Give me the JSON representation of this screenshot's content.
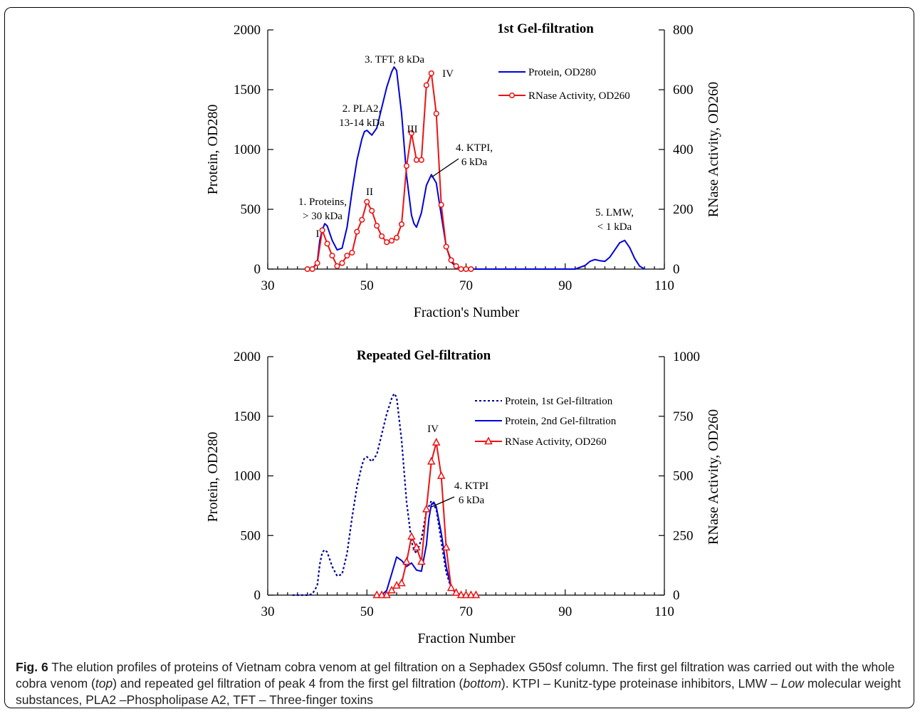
{
  "chart_data": [
    {
      "type": "line",
      "title": "1st Gel-filtration",
      "xlabel": "Fraction's Number",
      "ylabel_left": "Protein, OD280",
      "ylabel_right": "RNase Activity, OD260",
      "xlim": [
        30,
        110
      ],
      "ylim_left": [
        0,
        2000
      ],
      "ylim_right": [
        0,
        800
      ],
      "x_ticks": [
        30,
        50,
        70,
        90,
        110
      ],
      "y_ticks_left": [
        0,
        500,
        1000,
        1500,
        2000
      ],
      "y_ticks_right": [
        0,
        200,
        400,
        600,
        800
      ],
      "grid": false,
      "legend_position": "top-right",
      "series": [
        {
          "name": "Protein, OD280",
          "axis": "left",
          "color": "#0000dd",
          "style": "solid",
          "marker": "none",
          "x": [
            39,
            40,
            40.5,
            41,
            41.5,
            42,
            43,
            44,
            45,
            46,
            47,
            48,
            49,
            49.5,
            50,
            50.5,
            51,
            52,
            53,
            54,
            55,
            55.5,
            56,
            57,
            58,
            59,
            59.5,
            60,
            61,
            62,
            63,
            64,
            65,
            66,
            67,
            68,
            69,
            70,
            72,
            80,
            88,
            92,
            94,
            95,
            96,
            97,
            98,
            99,
            100,
            101,
            102,
            103,
            104,
            105,
            106
          ],
          "y": [
            0,
            60,
            240,
            330,
            380,
            360,
            240,
            160,
            175,
            350,
            650,
            910,
            1090,
            1150,
            1160,
            1140,
            1120,
            1180,
            1350,
            1520,
            1650,
            1690,
            1660,
            1300,
            780,
            450,
            380,
            350,
            470,
            700,
            790,
            720,
            450,
            190,
            60,
            20,
            5,
            0,
            0,
            0,
            0,
            0,
            30,
            65,
            80,
            70,
            65,
            100,
            160,
            220,
            240,
            180,
            90,
            25,
            0
          ]
        },
        {
          "name": "RNase Activity, OD260",
          "axis": "right",
          "color": "#ee1111",
          "style": "solid",
          "marker": "circle",
          "x": [
            38,
            39,
            40,
            41,
            42,
            43,
            44,
            45,
            46,
            47,
            48,
            49,
            50,
            51,
            52,
            53,
            54,
            55,
            56,
            57,
            58,
            59,
            60,
            61,
            62,
            63,
            64,
            65,
            66,
            67,
            68,
            69,
            70,
            71
          ],
          "y": [
            0,
            0,
            20,
            130,
            85,
            45,
            10,
            20,
            45,
            55,
            125,
            165,
            225,
            195,
            145,
            110,
            90,
            95,
            105,
            150,
            345,
            455,
            365,
            365,
            615,
            655,
            520,
            215,
            75,
            30,
            10,
            0,
            0,
            0
          ]
        }
      ],
      "annotations": [
        {
          "lines": [
            "1st Gel-filtration"
          ],
          "kind": "title"
        },
        {
          "lines": [
            "3. TFT,  8 kDa"
          ]
        },
        {
          "lines": [
            "2. PLA2,",
            "13-14 kDa"
          ]
        },
        {
          "lines": [
            "1. Proteins,",
            "> 30 kDa"
          ]
        },
        {
          "lines": [
            "I"
          ]
        },
        {
          "lines": [
            "II"
          ]
        },
        {
          "lines": [
            "III"
          ]
        },
        {
          "lines": [
            "IV"
          ]
        },
        {
          "lines": [
            "4. KTPI,",
            "6 kDa"
          ]
        },
        {
          "lines": [
            "5. LMW,",
            "< 1 kDa"
          ]
        }
      ]
    },
    {
      "type": "line",
      "title": "Repeated Gel-filtration",
      "xlabel": "Fraction Number",
      "ylabel_left": "Protein, OD280",
      "ylabel_right": "RNase Activity, OD260",
      "xlim": [
        30,
        110
      ],
      "ylim_left": [
        0,
        2000
      ],
      "ylim_right": [
        0,
        1000
      ],
      "x_ticks": [
        30,
        50,
        70,
        90,
        110
      ],
      "y_ticks_left": [
        0,
        500,
        1000,
        1500,
        2000
      ],
      "y_ticks_right": [
        0,
        250,
        500,
        750,
        1000
      ],
      "grid": false,
      "legend_position": "top-right",
      "series": [
        {
          "name": "Protein, 1st Gel-filtration",
          "axis": "left",
          "color": "#000099",
          "style": "dotted",
          "marker": "none",
          "x": [
            35,
            38,
            39,
            40,
            40.5,
            41,
            41.5,
            42,
            43,
            44,
            45,
            46,
            47,
            48,
            49,
            49.5,
            50,
            50.5,
            51,
            52,
            53,
            54,
            55,
            55.5,
            56,
            57,
            58,
            59,
            59.5,
            60,
            61,
            62,
            63,
            64,
            65,
            66,
            67,
            68,
            70
          ],
          "y": [
            0,
            0,
            10,
            80,
            260,
            360,
            380,
            360,
            240,
            160,
            175,
            350,
            650,
            910,
            1090,
            1150,
            1160,
            1140,
            1120,
            1180,
            1350,
            1520,
            1650,
            1690,
            1660,
            1300,
            780,
            450,
            380,
            350,
            470,
            700,
            790,
            720,
            450,
            190,
            60,
            20,
            0
          ]
        },
        {
          "name": "Protein, 2nd Gel-filtration",
          "axis": "left",
          "color": "#0000dd",
          "style": "solid",
          "marker": "none",
          "x": [
            53,
            54,
            55,
            56,
            57,
            58,
            59,
            60,
            61,
            62,
            62.5,
            63,
            63.5,
            64,
            65,
            66,
            67,
            68,
            69,
            70
          ],
          "y": [
            0,
            40,
            180,
            320,
            290,
            240,
            270,
            210,
            200,
            420,
            640,
            760,
            780,
            740,
            520,
            240,
            60,
            15,
            0,
            0
          ]
        },
        {
          "name": "RNase Activity, OD260",
          "axis": "right",
          "color": "#ee1111",
          "style": "solid",
          "marker": "triangle",
          "x": [
            52,
            53,
            54,
            55,
            56,
            57,
            58,
            59,
            60,
            61,
            62,
            63,
            64,
            65,
            66,
            67,
            68,
            69,
            70,
            71,
            72
          ],
          "y": [
            0,
            0,
            0,
            20,
            40,
            50,
            140,
            245,
            200,
            140,
            360,
            560,
            640,
            500,
            200,
            30,
            10,
            0,
            0,
            0,
            0
          ]
        }
      ],
      "annotations": [
        {
          "lines": [
            "Repeated Gel-filtration"
          ],
          "kind": "title"
        },
        {
          "lines": [
            "IV"
          ]
        },
        {
          "lines": [
            "4. KTPI",
            "6 kDa"
          ]
        }
      ]
    }
  ],
  "caption": {
    "label": "Fig. 6",
    "segments": [
      {
        "text": " The elution profiles of proteins of Vietnam cobra venom at gel filtration on a Sephadex G50sf column. The first gel filtration was carried out with the whole cobra venom (",
        "italic": false
      },
      {
        "text": "top",
        "italic": true
      },
      {
        "text": ") and repeated gel filtration of peak 4 from the first gel filtration (",
        "italic": false
      },
      {
        "text": "bottom",
        "italic": true
      },
      {
        "text": "). KTPI – Kunitz-type proteinase inhibitors, LMW – ",
        "italic": false
      },
      {
        "text": "Low",
        "italic": true
      },
      {
        "text": " molecular weight substances, PLA2 –Phospholipase A2, TFT – Three-finger toxins",
        "italic": false
      }
    ]
  },
  "colors": {
    "protein": "#0000dd",
    "protein_first": "#000099",
    "rnase": "#ee1111",
    "frame": "#000000"
  }
}
